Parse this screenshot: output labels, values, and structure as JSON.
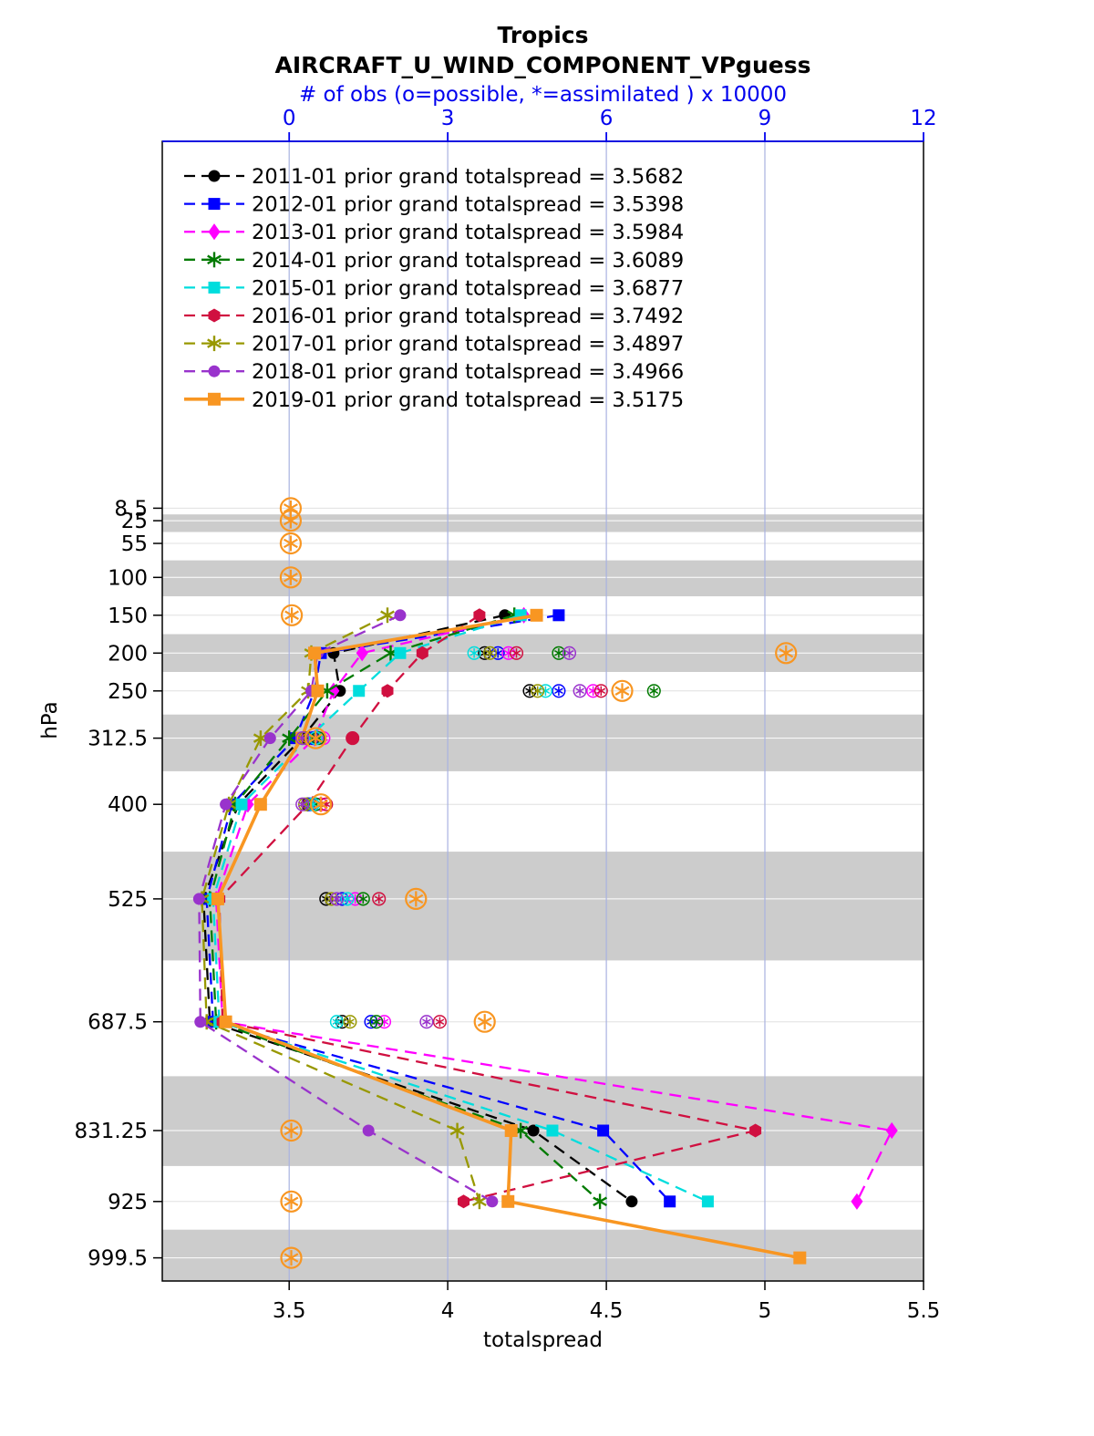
{
  "chart_data": {
    "type": "line",
    "title": "Tropics",
    "subtitle": "AIRCRAFT_U_WIND_COMPONENT_VPguess",
    "top_axis": {
      "label": "# of obs (o=possible, *=assimilated ) x 10000",
      "ticks": [
        "0",
        "3",
        "6",
        "9",
        "12"
      ],
      "tick_values": [
        0,
        3,
        6,
        9,
        12
      ],
      "range": [
        0,
        12
      ],
      "color": "#0000ee"
    },
    "bottom_axis": {
      "label": "totalspread",
      "ticks": [
        "3.5",
        "4",
        "4.5",
        "5",
        "5.5"
      ],
      "tick_values": [
        3.5,
        4,
        4.5,
        5,
        5.5
      ],
      "range_shown": [
        3.1,
        5.5
      ]
    },
    "left_axis": {
      "label": "hPa",
      "tick_labels": [
        "8.5",
        "25",
        "55",
        "100",
        "150",
        "200",
        "250",
        "312.5",
        "400",
        "525",
        "687.5",
        "831.25",
        "925",
        "999.5"
      ],
      "levels": [
        8.5,
        25,
        55,
        100,
        150,
        200,
        250,
        312.5,
        400,
        525,
        687.5,
        831.25,
        925,
        999.5
      ]
    },
    "band_color": "#cccccc",
    "grid_color": "#a9b2e0",
    "legend_position": "top-left-inside",
    "series": [
      {
        "year": "2011-01",
        "label": "2011-01 prior grand totalspread = 3.5682",
        "grand_totalspread": 3.5682,
        "color": "#000000",
        "marker": "circle",
        "line_style": "dashed",
        "levels": [
          150,
          200,
          250,
          312.5,
          400,
          525,
          687.5,
          831.25,
          925
        ],
        "totalspread": [
          4.18,
          3.64,
          3.66,
          3.54,
          3.34,
          3.23,
          3.25,
          4.27,
          4.58
        ]
      },
      {
        "year": "2012-01",
        "label": "2012-01 prior grand totalspread = 3.5398",
        "grand_totalspread": 3.5398,
        "color": "#0000ff",
        "marker": "square",
        "line_style": "dashed",
        "levels": [
          150,
          200,
          250,
          312.5,
          400,
          525,
          687.5,
          831.25,
          925
        ],
        "totalspread": [
          4.35,
          3.6,
          3.58,
          3.52,
          3.32,
          3.24,
          3.26,
          4.49,
          4.7
        ]
      },
      {
        "year": "2013-01",
        "label": "2013-01 prior grand totalspread = 3.5984",
        "grand_totalspread": 3.5984,
        "color": "#ff00ff",
        "marker": "diamond",
        "line_style": "dashed",
        "levels": [
          150,
          200,
          250,
          312.5,
          400,
          525,
          687.5,
          831.25,
          925
        ],
        "totalspread": [
          4.24,
          3.73,
          3.64,
          3.58,
          3.37,
          3.27,
          3.29,
          5.4,
          5.29
        ]
      },
      {
        "year": "2014-01",
        "label": "2014-01 prior grand totalspread = 3.6089",
        "grand_totalspread": 3.6089,
        "color": "#007a00",
        "marker": "asterisk",
        "line_style": "dashed",
        "levels": [
          150,
          200,
          250,
          312.5,
          400,
          525,
          687.5,
          831.25,
          925
        ],
        "totalspread": [
          4.21,
          3.82,
          3.62,
          3.5,
          3.33,
          3.25,
          3.27,
          4.23,
          4.48
        ]
      },
      {
        "year": "2015-01",
        "label": "2015-01 prior grand totalspread = 3.6877",
        "grand_totalspread": 3.6877,
        "color": "#00dddd",
        "marker": "square",
        "line_style": "dashed",
        "levels": [
          150,
          200,
          250,
          312.5,
          400,
          525,
          687.5,
          831.25,
          925
        ],
        "totalspread": [
          4.23,
          3.85,
          3.72,
          3.56,
          3.35,
          3.26,
          3.28,
          4.33,
          4.82
        ]
      },
      {
        "year": "2016-01",
        "label": "2016-01 prior grand totalspread = 3.7492",
        "grand_totalspread": 3.7492,
        "color": "#d01040",
        "marker": "hexagon",
        "line_style": "dashed",
        "levels": [
          150,
          200,
          250,
          312.5,
          400,
          525,
          687.5,
          831.25,
          925
        ],
        "totalspread": [
          4.1,
          3.92,
          3.81,
          3.7,
          3.56,
          3.28,
          3.29,
          4.97,
          4.05
        ]
      },
      {
        "year": "2017-01",
        "label": "2017-01 prior grand totalspread = 3.4897",
        "grand_totalspread": 3.4897,
        "color": "#989800",
        "marker": "asterisk",
        "line_style": "dashed",
        "levels": [
          150,
          200,
          250,
          312.5,
          400,
          525,
          687.5,
          831.25,
          925
        ],
        "totalspread": [
          3.81,
          3.57,
          3.56,
          3.41,
          3.31,
          3.225,
          3.24,
          4.03,
          4.1
        ]
      },
      {
        "year": "2018-01",
        "label": "2018-01 prior grand totalspread = 3.4966",
        "grand_totalspread": 3.4966,
        "color": "#9933cc",
        "marker": "circle",
        "line_style": "dashed",
        "levels": [
          150,
          200,
          250,
          312.5,
          400,
          525,
          687.5,
          831.25,
          925
        ],
        "totalspread": [
          3.85,
          3.59,
          3.57,
          3.44,
          3.3,
          3.216,
          3.22,
          3.75,
          4.14
        ]
      },
      {
        "year": "2019-01",
        "label": "2019-01 prior grand totalspread = 3.5175",
        "grand_totalspread": 3.5175,
        "color": "#f89622",
        "marker": "square",
        "line_style": "solid",
        "levels": [
          150,
          200,
          250,
          312.5,
          400,
          525,
          687.5,
          831.25,
          925,
          999.5
        ],
        "totalspread": [
          4.28,
          3.58,
          3.59,
          3.54,
          3.41,
          3.275,
          3.3,
          4.2,
          4.19,
          5.11
        ]
      }
    ],
    "obs_markers": [
      {
        "year": "2011-01",
        "level": 200,
        "value": 3.7
      },
      {
        "year": "2011-01",
        "level": 250,
        "value": 4.55
      },
      {
        "year": "2011-01",
        "level": 312.5,
        "value": 0.35
      },
      {
        "year": "2011-01",
        "level": 400,
        "value": 0.35
      },
      {
        "year": "2011-01",
        "level": 525,
        "value": 0.7
      },
      {
        "year": "2011-01",
        "level": 687.5,
        "value": 1.0
      },
      {
        "year": "2012-01",
        "level": 200,
        "value": 3.95
      },
      {
        "year": "2012-01",
        "level": 250,
        "value": 5.1
      },
      {
        "year": "2012-01",
        "level": 312.5,
        "value": 0.45
      },
      {
        "year": "2012-01",
        "level": 400,
        "value": 0.4
      },
      {
        "year": "2012-01",
        "level": 525,
        "value": 1.0
      },
      {
        "year": "2012-01",
        "level": 687.5,
        "value": 1.55
      },
      {
        "year": "2013-01",
        "level": 200,
        "value": 4.15
      },
      {
        "year": "2013-01",
        "level": 250,
        "value": 5.75
      },
      {
        "year": "2013-01",
        "level": 312.5,
        "value": 0.65
      },
      {
        "year": "2013-01",
        "level": 400,
        "value": 0.6
      },
      {
        "year": "2013-01",
        "level": 525,
        "value": 1.25
      },
      {
        "year": "2013-01",
        "level": 687.5,
        "value": 1.8
      },
      {
        "year": "2014-01",
        "level": 200,
        "value": 5.1
      },
      {
        "year": "2014-01",
        "level": 250,
        "value": 6.9
      },
      {
        "year": "2014-01",
        "level": 312.5,
        "value": 0.55
      },
      {
        "year": "2014-01",
        "level": 400,
        "value": 0.5
      },
      {
        "year": "2014-01",
        "level": 525,
        "value": 1.4
      },
      {
        "year": "2014-01",
        "level": 687.5,
        "value": 1.65
      },
      {
        "year": "2015-01",
        "level": 200,
        "value": 3.5
      },
      {
        "year": "2015-01",
        "level": 250,
        "value": 4.85
      },
      {
        "year": "2015-01",
        "level": 312.5,
        "value": 0.5
      },
      {
        "year": "2015-01",
        "level": 400,
        "value": 0.45
      },
      {
        "year": "2015-01",
        "level": 525,
        "value": 1.1
      },
      {
        "year": "2015-01",
        "level": 687.5,
        "value": 0.9
      },
      {
        "year": "2016-01",
        "level": 200,
        "value": 4.3
      },
      {
        "year": "2016-01",
        "level": 250,
        "value": 5.9
      },
      {
        "year": "2016-01",
        "level": 312.5,
        "value": 1.2
      },
      {
        "year": "2016-01",
        "level": 400,
        "value": 0.7
      },
      {
        "year": "2016-01",
        "level": 525,
        "value": 1.7
      },
      {
        "year": "2016-01",
        "level": 687.5,
        "value": 2.85
      },
      {
        "year": "2017-01",
        "level": 200,
        "value": 3.8
      },
      {
        "year": "2017-01",
        "level": 250,
        "value": 4.7
      },
      {
        "year": "2017-01",
        "level": 312.5,
        "value": 0.3
      },
      {
        "year": "2017-01",
        "level": 400,
        "value": 0.3
      },
      {
        "year": "2017-01",
        "level": 525,
        "value": 0.8
      },
      {
        "year": "2017-01",
        "level": 687.5,
        "value": 1.15
      },
      {
        "year": "2018-01",
        "level": 200,
        "value": 5.3
      },
      {
        "year": "2018-01",
        "level": 250,
        "value": 5.5
      },
      {
        "year": "2018-01",
        "level": 312.5,
        "value": 0.25
      },
      {
        "year": "2018-01",
        "level": 400,
        "value": 0.25
      },
      {
        "year": "2018-01",
        "level": 525,
        "value": 0.9
      },
      {
        "year": "2018-01",
        "level": 687.5,
        "value": 2.6
      },
      {
        "year": "2019-01",
        "level": 8.5,
        "value": 0.03
      },
      {
        "year": "2019-01",
        "level": 25,
        "value": 0.03
      },
      {
        "year": "2019-01",
        "level": 55,
        "value": 0.03
      },
      {
        "year": "2019-01",
        "level": 100,
        "value": 0.03
      },
      {
        "year": "2019-01",
        "level": 150,
        "value": 0.05
      },
      {
        "year": "2019-01",
        "level": 200,
        "value": 9.4
      },
      {
        "year": "2019-01",
        "level": 250,
        "value": 6.3
      },
      {
        "year": "2019-01",
        "level": 312.5,
        "value": 0.5
      },
      {
        "year": "2019-01",
        "level": 400,
        "value": 0.6
      },
      {
        "year": "2019-01",
        "level": 525,
        "value": 2.4
      },
      {
        "year": "2019-01",
        "level": 687.5,
        "value": 3.7
      },
      {
        "year": "2019-01",
        "level": 831.25,
        "value": 0.04
      },
      {
        "year": "2019-01",
        "level": 925,
        "value": 0.04
      },
      {
        "year": "2019-01",
        "level": 999.5,
        "value": 0.04
      }
    ]
  }
}
